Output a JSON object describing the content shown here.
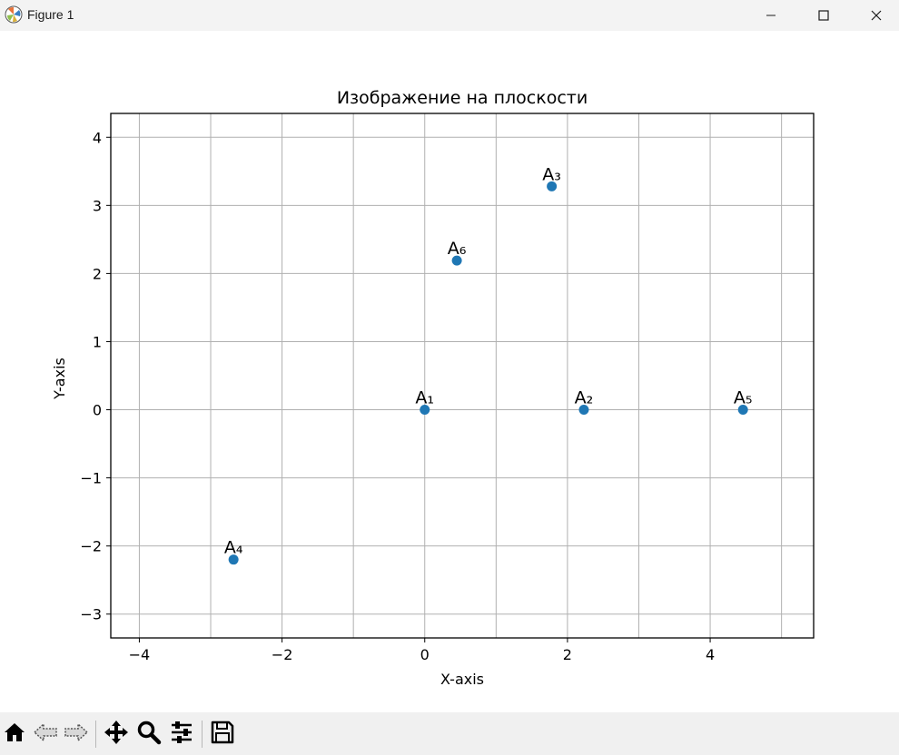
{
  "window": {
    "title": "Figure 1"
  },
  "chart_data": {
    "type": "scatter",
    "title": "Изображение на плоскости",
    "xlabel": "X-axis",
    "ylabel": "Y-axis",
    "xlim": [
      -4.4,
      5.45
    ],
    "ylim": [
      -3.35,
      4.35
    ],
    "xticks": [
      -4,
      -2,
      0,
      2,
      4
    ],
    "xtick_labels": [
      "−4",
      "−2",
      "0",
      "2",
      "4"
    ],
    "yticks": [
      -3,
      -2,
      -1,
      0,
      1,
      2,
      3,
      4
    ],
    "ytick_labels": [
      "−3",
      "−2",
      "−1",
      "0",
      "1",
      "2",
      "3",
      "4"
    ],
    "grid": true,
    "grid_x": [
      -4,
      -3,
      -2,
      -1,
      0,
      1,
      2,
      3,
      4,
      5
    ],
    "grid_y": [
      -3,
      -2,
      -1,
      0,
      1,
      2,
      3,
      4
    ],
    "marker_color": "#1f77b4",
    "points": [
      {
        "label": "A₁",
        "x": 0,
        "y": 0
      },
      {
        "label": "A₂",
        "x": 2.23,
        "y": 0
      },
      {
        "label": "A₃",
        "x": 1.78,
        "y": 3.28
      },
      {
        "label": "A₄",
        "x": -2.68,
        "y": -2.2
      },
      {
        "label": "A₅",
        "x": 4.46,
        "y": 0
      },
      {
        "label": "A₆",
        "x": 0.45,
        "y": 2.19
      }
    ]
  },
  "toolbar": {
    "items": [
      {
        "name": "home-button",
        "icon": "home-icon"
      },
      {
        "name": "back-button",
        "icon": "arrow-left-icon"
      },
      {
        "name": "forward-button",
        "icon": "arrow-right-icon"
      },
      {
        "name": "pan-button",
        "icon": "move-icon"
      },
      {
        "name": "zoom-button",
        "icon": "magnifier-icon"
      },
      {
        "name": "configure-subplots-button",
        "icon": "sliders-icon"
      },
      {
        "name": "save-button",
        "icon": "floppy-disk-icon"
      }
    ]
  }
}
